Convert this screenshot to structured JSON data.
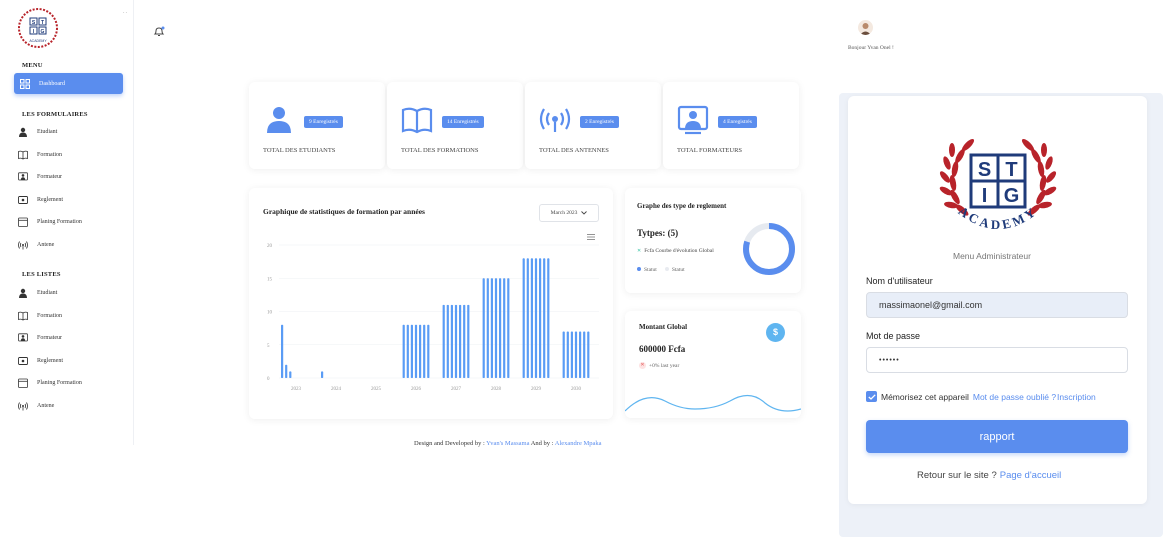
{
  "sidebar": {
    "logo_text": "ACADEMY",
    "dots": "..",
    "menu_title": "MENU",
    "active_item": "Dashboard",
    "forms_title": "LES FORMULAIRES",
    "forms": [
      {
        "label": "Etudiant",
        "icon": "user-icon"
      },
      {
        "label": "Formation",
        "icon": "book-icon"
      },
      {
        "label": "Formateur",
        "icon": "teacher-icon"
      },
      {
        "label": "Reglement",
        "icon": "payment-icon"
      },
      {
        "label": "Planing Formation",
        "icon": "calendar-icon"
      },
      {
        "label": "Antene",
        "icon": "antenna-icon"
      }
    ],
    "lists_title": "LES LISTES",
    "lists": [
      {
        "label": "Etudiant",
        "icon": "user-icon"
      },
      {
        "label": "Formation",
        "icon": "book-icon"
      },
      {
        "label": "Formateur",
        "icon": "teacher-icon"
      },
      {
        "label": "Reglement",
        "icon": "payment-icon"
      },
      {
        "label": "Planing Formation",
        "icon": "calendar-icon"
      },
      {
        "label": "Antene",
        "icon": "antenna-icon"
      }
    ]
  },
  "header": {
    "greeting": "Bonjour Yvan Onel !"
  },
  "stats": [
    {
      "badge": "9 Enregistrés",
      "label": "TOTAL DES ETUDIANTS",
      "icon": "user-icon"
    },
    {
      "badge": "14 Enregistrés",
      "label": "TOTAL DES FORMATIONS",
      "icon": "book-icon"
    },
    {
      "badge": "2 Enregistrés",
      "label": "TOTAL DES ANTENNES",
      "icon": "antenna-icon"
    },
    {
      "badge": "4 Enregistrés",
      "label": "TOTAL FORMATEURS",
      "icon": "teacher-icon"
    }
  ],
  "chart_data": {
    "type": "bar",
    "title": "Graphique de statistiques de formation par années",
    "xlabel": "",
    "ylabel": "",
    "ylim": [
      0,
      20
    ],
    "yticks": [
      "0",
      "5",
      "10",
      "15",
      "20"
    ],
    "categories": [
      "2023",
      "2024",
      "2025",
      "2026",
      "2027",
      "2028",
      "2029",
      "2030"
    ],
    "bar_heights_per_category": [
      [
        8,
        2,
        1
      ],
      [
        1
      ],
      [],
      [
        8,
        8,
        8,
        8,
        8,
        8,
        8
      ],
      [
        11,
        11,
        11,
        11,
        11,
        11,
        11
      ],
      [
        15,
        15,
        15,
        15,
        15,
        15,
        15
      ],
      [
        18,
        18,
        18,
        18,
        18,
        18,
        18
      ],
      [
        7,
        7,
        7,
        7,
        7,
        7,
        7
      ]
    ],
    "grid": true,
    "color": "#5a9cf5"
  },
  "chart_filter": "March 2023",
  "reglement": {
    "title": "Graphe des type de reglement",
    "types": "Tytpes: (5)",
    "legend": "Fcfa Courbe d'évolution Global",
    "status": [
      "Statut",
      "Statut"
    ],
    "donut_fraction": 0.8
  },
  "montant": {
    "title": "Montant Global",
    "value": "600000 Fcfa",
    "change": "+0% last year",
    "coin_symbol": "$"
  },
  "footer": {
    "prefix": "Design and Developed by : ",
    "author1": "Yvan's Massama",
    "middle": " And by : ",
    "author2": "Alexandre Mpaka"
  },
  "login": {
    "subtitle": "Menu Administrateur",
    "username_label": "Nom d'utilisateur",
    "username_value": "massimaonel@gmail.com",
    "password_label": "Mot de passe",
    "password_value": "••••••",
    "remember": "Mémorisez cet appareil",
    "forgot": "Mot de passe oublié ?",
    "signup": "Inscription",
    "button": "rapport",
    "back_text": "Retour sur le site ?",
    "back_link": "Page d'accueil"
  },
  "colors": {
    "accent": "#5a8dee",
    "bars": "#5a9cf5",
    "logo_red": "#b8232a",
    "logo_blue": "#1f3b7a"
  }
}
